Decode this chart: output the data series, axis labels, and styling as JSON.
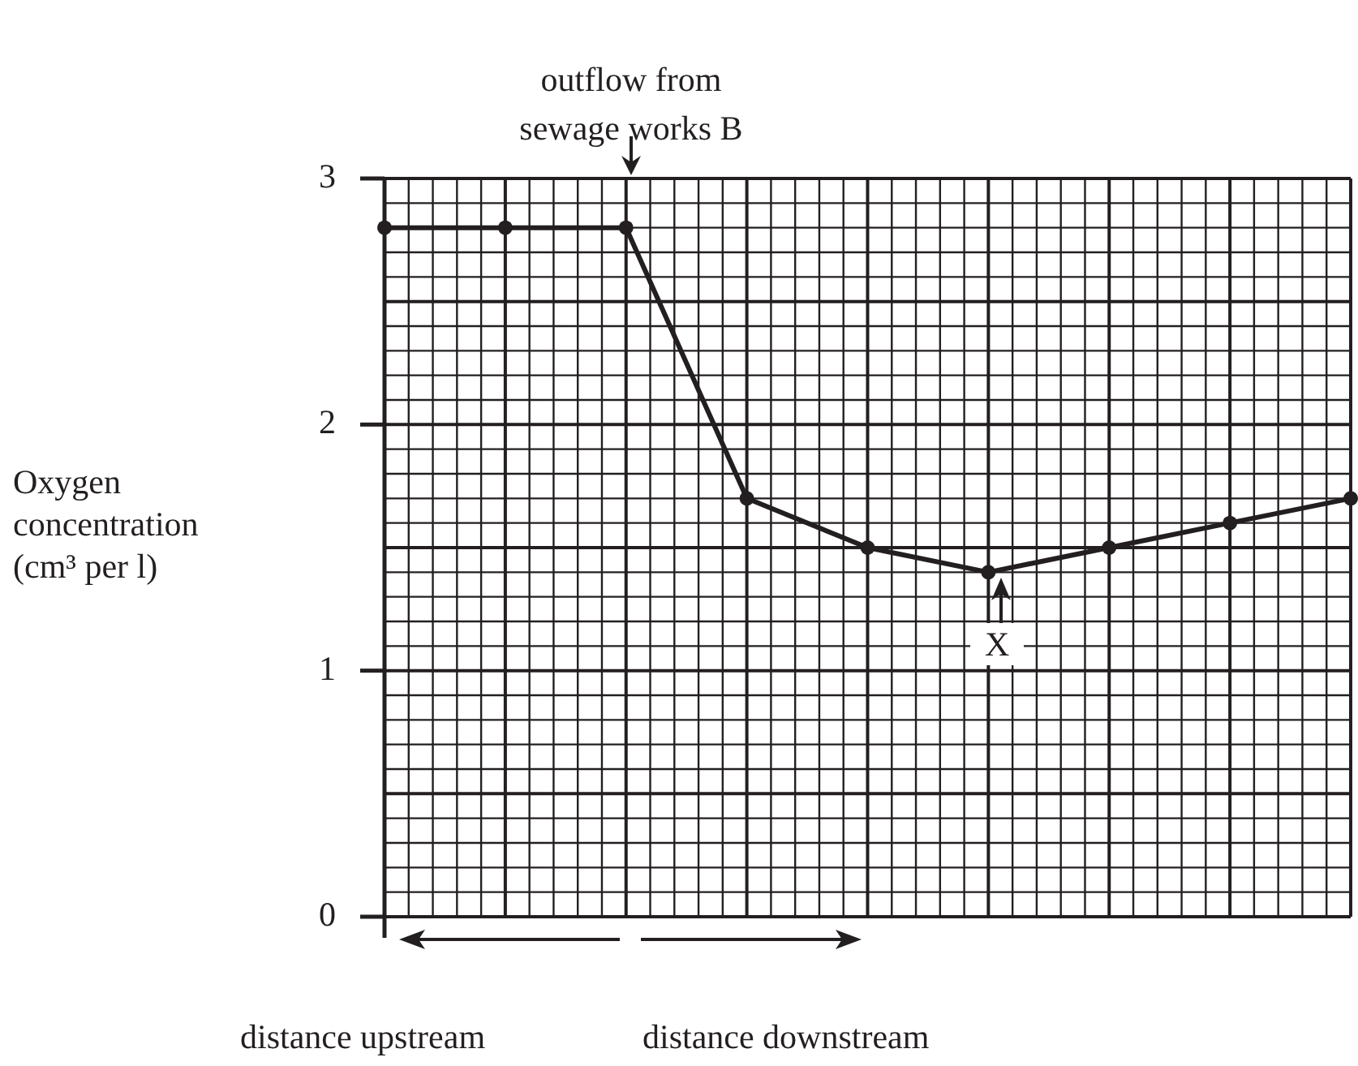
{
  "chart_data": {
    "type": "line",
    "ylabel": "Oxygen concentration (cm³ per l)",
    "categories": [
      null,
      null,
      null,
      null,
      null,
      null,
      null,
      null,
      null
    ],
    "series": [
      {
        "color": "#231f20",
        "values": [
          2.8,
          2.8,
          2.8,
          1.7,
          1.5,
          1.4,
          1.5,
          1.6,
          1.7
        ]
      }
    ],
    "ylim": [
      0,
      3
    ],
    "yticks": [
      0,
      1,
      2,
      3
    ],
    "grid": true,
    "legend": false,
    "tick_labels": "y",
    "marker": "circle",
    "line_style": "solid",
    "annotations": [
      "outflow from sewage works B",
      "X",
      "distance upstream",
      "distance downstream"
    ]
  }
}
